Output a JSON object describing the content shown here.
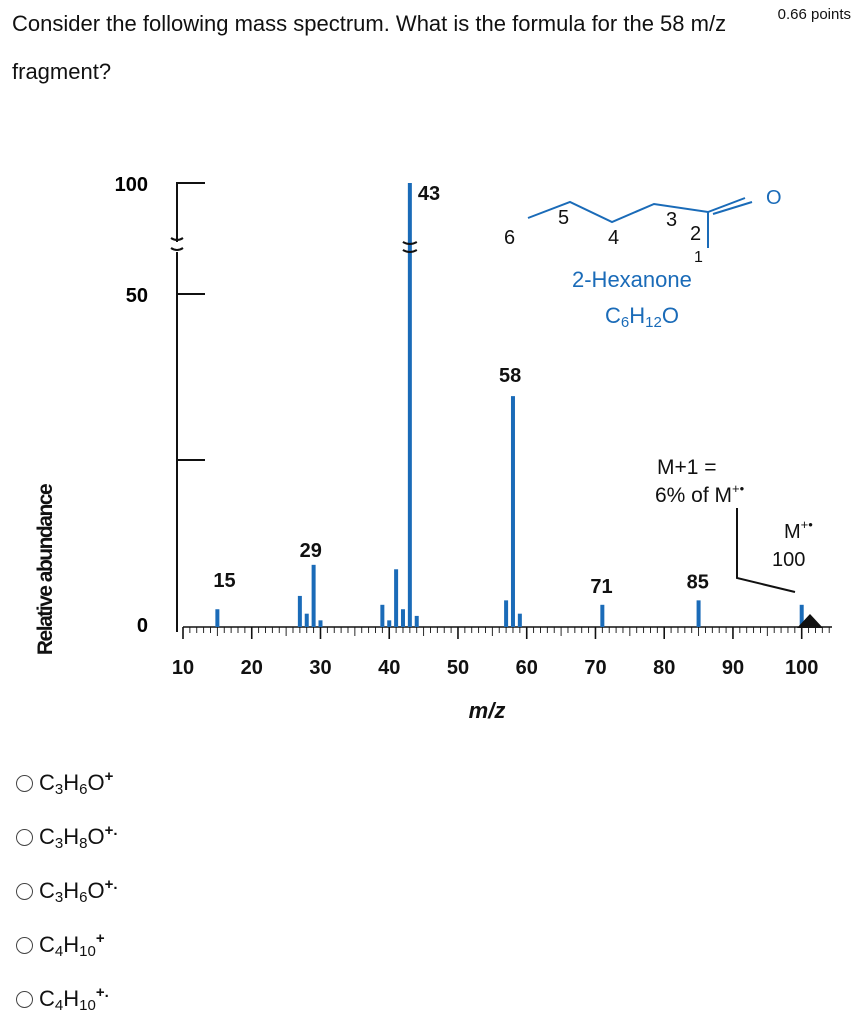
{
  "question": {
    "text": "Consider the following mass spectrum. What is the formula for the 58 m/z fragment?",
    "points": "0.66 points"
  },
  "chart_data": {
    "type": "bar",
    "xlabel": "m/z",
    "ylabel": "Relative abundance",
    "xlim": [
      10,
      104
    ],
    "ylim": [
      0,
      100
    ],
    "x_ticks": [
      10,
      20,
      30,
      40,
      50,
      60,
      70,
      80,
      90,
      100
    ],
    "y_ticks": [
      0,
      50,
      100
    ],
    "y_break": true,
    "bars": [
      {
        "x": 15,
        "y": 4
      },
      {
        "x": 27,
        "y": 7
      },
      {
        "x": 28,
        "y": 3
      },
      {
        "x": 29,
        "y": 14
      },
      {
        "x": 30,
        "y": 1.5
      },
      {
        "x": 39,
        "y": 5
      },
      {
        "x": 40,
        "y": 1.5
      },
      {
        "x": 41,
        "y": 13
      },
      {
        "x": 42,
        "y": 4
      },
      {
        "x": 43,
        "y": 100
      },
      {
        "x": 44,
        "y": 2.5
      },
      {
        "x": 57,
        "y": 6
      },
      {
        "x": 58,
        "y": 52
      },
      {
        "x": 59,
        "y": 3
      },
      {
        "x": 71,
        "y": 5
      },
      {
        "x": 85,
        "y": 6
      },
      {
        "x": 100,
        "y": 5
      }
    ],
    "peak_labels": [
      {
        "x": 15,
        "text": "15"
      },
      {
        "x": 29,
        "text": "29"
      },
      {
        "x": 43,
        "text": "43"
      },
      {
        "x": 58,
        "text": "58"
      },
      {
        "x": 71,
        "text": "71"
      },
      {
        "x": 85,
        "text": "85"
      }
    ],
    "annotations": {
      "molecule_name": "2-Hexanone",
      "formula_main": "C",
      "formula_sub1": "6",
      "formula_h": "H",
      "formula_sub2": "12",
      "formula_o": "O",
      "oxygen": "O",
      "carbon_numbers": [
        "6",
        "5",
        "4",
        "3",
        "2",
        "1"
      ],
      "m_plus_1_line1": "M+1 =",
      "m_plus_1_line2": "6% of M",
      "m_plus_1_sup": "+•",
      "mol_ion_label": "M",
      "mol_ion_sup": "+•",
      "mol_ion_value": "100"
    },
    "colors": {
      "bars": "#1a6bb8",
      "axis": "#111111"
    }
  },
  "options": [
    {
      "c": "C",
      "n1": "3",
      "h": "H",
      "n2": "6",
      "o": "O",
      "charge": "+"
    },
    {
      "c": "C",
      "n1": "3",
      "h": "H",
      "n2": "8",
      "o": "O",
      "charge": "+."
    },
    {
      "c": "C",
      "n1": "3",
      "h": "H",
      "n2": "6",
      "o": "O",
      "charge": "+."
    },
    {
      "c": "C",
      "n1": "4",
      "h": "H",
      "n2": "10",
      "o": "",
      "charge": "+"
    },
    {
      "c": "C",
      "n1": "4",
      "h": "H",
      "n2": "10",
      "o": "",
      "charge": "+."
    }
  ]
}
